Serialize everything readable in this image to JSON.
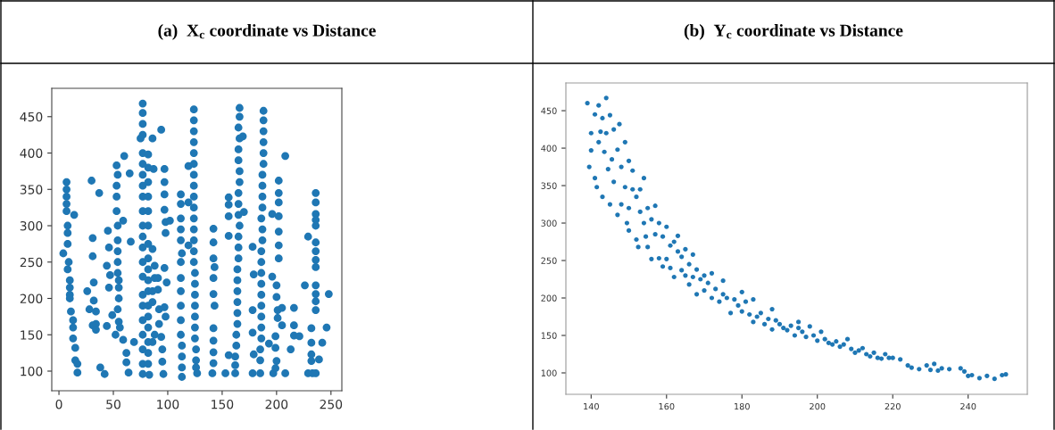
{
  "chart_data": [
    {
      "type": "scatter",
      "title": "(a)  X$_{c}$ coordinate vs Distance",
      "color": "#1f77b4",
      "marker": "circle",
      "xlim": [
        -6.6,
        260
      ],
      "ylim": [
        73,
        489
      ],
      "xticks": [
        0,
        50,
        100,
        150,
        200,
        250
      ],
      "yticks": [
        100,
        150,
        200,
        250,
        300,
        350,
        400,
        450
      ],
      "x": [
        7,
        7,
        7,
        7,
        7,
        8,
        8,
        8,
        4,
        9,
        8,
        10,
        10,
        10,
        10,
        11,
        13,
        13,
        13,
        15,
        15,
        17,
        17,
        14,
        26,
        28,
        30,
        31,
        31,
        32,
        32,
        31,
        34,
        34,
        34,
        37,
        38,
        42,
        45,
        46,
        44,
        47,
        46,
        44,
        49,
        53,
        54,
        53,
        53,
        53,
        54,
        54,
        54,
        54,
        54,
        55,
        55,
        55,
        54,
        55,
        52,
        56,
        59,
        60,
        59,
        62,
        62,
        64,
        65,
        66,
        69,
        77,
        77,
        77,
        77,
        75,
        77,
        77,
        77,
        77,
        77,
        77,
        77,
        77,
        77,
        77,
        77,
        77,
        77,
        77,
        77,
        77,
        77,
        77,
        82,
        82,
        82,
        82,
        82,
        82,
        82,
        82,
        82,
        82,
        82,
        82,
        82,
        82,
        82,
        82,
        82,
        83,
        86,
        87,
        86,
        88,
        88,
        86,
        86,
        88,
        86,
        91,
        91,
        92,
        92,
        94,
        94,
        95,
        95,
        96,
        97,
        97,
        97,
        97,
        98,
        98,
        97,
        99,
        97,
        98,
        102,
        112,
        112,
        112,
        112,
        112,
        113,
        112,
        112,
        112,
        112,
        112,
        112,
        113,
        113,
        113,
        113,
        119,
        119,
        119,
        124,
        124,
        124,
        124,
        124,
        124,
        124,
        124,
        124,
        124,
        124,
        124,
        124,
        124,
        124,
        125,
        125,
        125,
        125,
        125,
        125,
        125,
        126,
        126,
        126,
        127,
        142,
        142,
        142,
        143,
        142,
        142,
        143,
        142,
        142,
        142,
        142,
        141,
        156,
        156,
        156,
        156,
        156,
        153,
        166,
        166,
        165,
        166,
        165,
        165,
        166,
        166,
        165,
        165,
        165,
        166,
        165,
        165,
        165,
        164,
        164,
        164,
        164,
        164,
        164,
        163,
        163,
        162,
        162,
        162,
        169,
        170,
        178,
        179,
        178,
        178,
        179,
        178,
        188,
        188,
        188,
        188,
        188,
        188,
        187,
        187,
        187,
        187,
        186,
        187,
        187,
        186,
        186,
        186,
        186,
        186,
        186,
        186,
        186,
        186,
        185,
        185,
        185,
        193,
        196,
        196,
        197,
        202,
        202,
        202,
        202,
        202,
        202,
        202,
        200,
        200,
        201,
        201,
        199,
        199,
        200,
        199,
        205,
        205,
        208,
        208,
        213,
        216,
        216,
        216,
        221,
        226,
        229,
        229,
        232,
        232,
        232,
        232,
        233,
        236,
        236,
        236,
        236,
        236,
        236,
        236,
        236,
        236,
        236,
        236,
        236,
        236,
        236,
        239,
        242,
        246,
        248
      ],
      "values": [
        360,
        350,
        340,
        330,
        320,
        300,
        290,
        275,
        262,
        250,
        240,
        225,
        215,
        205,
        200,
        182,
        170,
        160,
        145,
        132,
        115,
        110,
        98,
        315,
        210,
        185,
        362,
        283,
        258,
        222,
        197,
        163,
        182,
        165,
        157,
        345,
        105,
        96,
        293,
        270,
        245,
        232,
        215,
        162,
        177,
        383,
        370,
        355,
        340,
        320,
        300,
        280,
        265,
        250,
        235,
        225,
        215,
        200,
        185,
        168,
        150,
        160,
        307,
        396,
        143,
        125,
        112,
        98,
        372,
        278,
        140,
        468,
        455,
        440,
        425,
        420,
        400,
        385,
        370,
        355,
        340,
        320,
        300,
        285,
        270,
        250,
        230,
        205,
        190,
        170,
        150,
        130,
        110,
        96,
        398,
        380,
        360,
        340,
        320,
        300,
        275,
        255,
        240,
        225,
        210,
        190,
        175,
        160,
        140,
        125,
        110,
        95,
        420,
        378,
        268,
        245,
        228,
        210,
        195,
        150,
        140,
        228,
        212,
        185,
        165,
        147,
        432,
        130,
        113,
        96,
        378,
        360,
        343,
        322,
        305,
        290,
        242,
        222,
        188,
        175,
        307,
        343,
        330,
        310,
        295,
        280,
        262,
        250,
        228,
        210,
        190,
        170,
        150,
        135,
        120,
        105,
        92,
        382,
        332,
        273,
        460,
        445,
        430,
        415,
        400,
        385,
        370,
        355,
        340,
        325,
        310,
        295,
        280,
        265,
        250,
        235,
        220,
        205,
        190,
        175,
        160,
        145,
        130,
        115,
        105,
        97,
        296,
        277,
        255,
        243,
        228,
        206,
        190,
        159,
        142,
        126,
        111,
        97,
        339,
        329,
        313,
        286,
        122,
        97,
        462,
        450,
        435,
        420,
        405,
        390,
        375,
        360,
        345,
        330,
        315,
        300,
        285,
        270,
        255,
        240,
        225,
        210,
        195,
        180,
        165,
        150,
        135,
        120,
        108,
        97,
        423,
        319,
        271,
        233,
        184,
        153,
        123,
        97,
        458,
        445,
        430,
        415,
        400,
        385,
        370,
        355,
        340,
        325,
        310,
        295,
        280,
        265,
        250,
        235,
        220,
        205,
        190,
        175,
        160,
        145,
        130,
        115,
        97,
        138,
        316,
        230,
        97,
        362,
        345,
        332,
        313,
        292,
        273,
        255,
        218,
        202,
        184,
        173,
        148,
        132,
        114,
        104,
        187,
        163,
        396,
        97,
        130,
        187,
        163,
        149,
        148,
        218,
        285,
        97,
        159,
        139,
        123,
        114,
        97,
        345,
        332,
        316,
        308,
        300,
        277,
        265,
        253,
        243,
        218,
        206,
        196,
        184,
        97,
        116,
        139,
        160,
        206
      ]
    },
    {
      "type": "scatter",
      "title": "(b)  Y$_{c}$ coordinate vs Distance",
      "color": "#1f77b4",
      "marker": "circle",
      "xlim": [
        133.3,
        255.7
      ],
      "ylim": [
        71.4,
        487
      ],
      "xticks": [
        140,
        160,
        180,
        200,
        220,
        240
      ],
      "yticks": [
        100,
        150,
        200,
        250,
        300,
        350,
        400,
        450
      ],
      "x": [
        139,
        139.5,
        140,
        140,
        141,
        141,
        141.5,
        142,
        142,
        142.5,
        143,
        143,
        143.5,
        144,
        144,
        144.5,
        145,
        145,
        145.5,
        146,
        146,
        147,
        147,
        147.5,
        148,
        148,
        149,
        149,
        149.5,
        150,
        150,
        150,
        151,
        151,
        152,
        152,
        152.5,
        153,
        153,
        154,
        154,
        154.5,
        155,
        155,
        156,
        156,
        157,
        157,
        158,
        158,
        159,
        159,
        160,
        160,
        161,
        161,
        162,
        162,
        163,
        163,
        164,
        164,
        165,
        165,
        166,
        166,
        167,
        167,
        168,
        168,
        169,
        170,
        170,
        171,
        172,
        172,
        173,
        174,
        175,
        175,
        176,
        177,
        178,
        179,
        180,
        180,
        181,
        182,
        183,
        183,
        184,
        185,
        186,
        187,
        188,
        188,
        189,
        190,
        191,
        192,
        193,
        194,
        195,
        195,
        196,
        197,
        198,
        199,
        200,
        201,
        202,
        203,
        204,
        205,
        206,
        207,
        208,
        209,
        210,
        211,
        212,
        213,
        214,
        215,
        216,
        217,
        218,
        219,
        220,
        222,
        224,
        225,
        227,
        229,
        230,
        231,
        232,
        233,
        235,
        238,
        239,
        240,
        241,
        243,
        245,
        247,
        249,
        250
      ],
      "values": [
        460,
        375,
        420,
        397,
        445,
        360,
        348,
        457,
        408,
        422,
        440,
        335,
        395,
        467,
        420,
        372,
        444,
        325,
        385,
        355,
        425,
        311,
        398,
        432,
        375,
        325,
        348,
        408,
        300,
        383,
        320,
        290,
        345,
        370,
        278,
        335,
        268,
        345,
        315,
        360,
        300,
        282,
        320,
        268,
        305,
        252,
        323,
        285,
        300,
        253,
        282,
        242,
        295,
        252,
        270,
        240,
        275,
        228,
        283,
        262,
        255,
        237,
        265,
        230,
        245,
        218,
        258,
        228,
        238,
        205,
        225,
        230,
        210,
        220,
        233,
        200,
        212,
        195,
        223,
        205,
        200,
        180,
        198,
        190,
        208,
        182,
        195,
        178,
        198,
        168,
        175,
        180,
        165,
        172,
        185,
        158,
        170,
        165,
        160,
        157,
        163,
        150,
        168,
        160,
        155,
        148,
        162,
        150,
        143,
        155,
        145,
        140,
        138,
        142,
        135,
        138,
        145,
        132,
        127,
        130,
        133,
        125,
        122,
        127,
        120,
        119,
        125,
        120,
        120,
        118,
        110,
        107,
        105,
        110,
        104,
        112,
        103,
        106,
        105,
        106,
        102,
        96,
        97,
        93,
        96,
        92,
        97,
        98
      ]
    }
  ]
}
